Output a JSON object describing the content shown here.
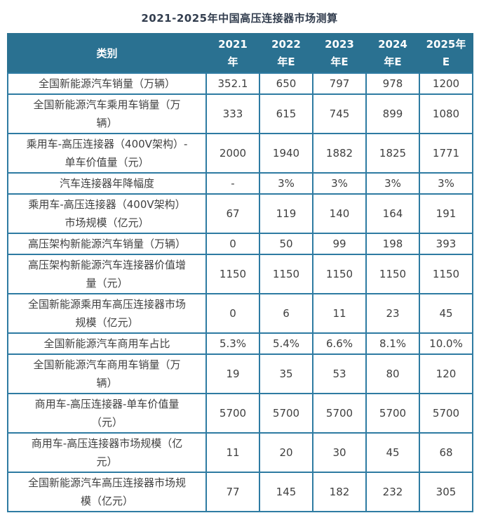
{
  "title": "2021-2025年中国高压连接器市场测算",
  "colors": {
    "header_bg": "#2a7191",
    "header_text": "#ffffff",
    "grid_border": "#2e7ba2",
    "cell_text": "#404040",
    "title_text": "#333e4f"
  },
  "table": {
    "header": {
      "category_label": "类别",
      "year_columns": [
        {
          "label": "2021年",
          "line1": "2021",
          "line2": "年"
        },
        {
          "label": "2022年E",
          "line1": "2022",
          "line2": "年E"
        },
        {
          "label": "2023年E",
          "line1": "2023",
          "line2": "年E"
        },
        {
          "label": "2024年E",
          "line1": "2024",
          "line2": "年E"
        },
        {
          "label": "2025年E",
          "line1": "2025年",
          "line2": "E"
        }
      ]
    },
    "rows": [
      {
        "label": "全国新能源汽车销量（万辆）",
        "values": [
          "352.1",
          "650",
          "797",
          "978",
          "1200"
        ]
      },
      {
        "label": "全国新能源汽车乘用车销量（万\n辆）",
        "values": [
          "333",
          "615",
          "745",
          "899",
          "1080"
        ]
      },
      {
        "label": "乘用车-高压连接器（400V架构）-\n单车价值量（元）",
        "values": [
          "2000",
          "1940",
          "1882",
          "1825",
          "1771"
        ]
      },
      {
        "label": "汽车连接器年降幅度",
        "values": [
          "-",
          "3%",
          "3%",
          "3%",
          "3%"
        ]
      },
      {
        "label": "乘用车-高压连接器（400V架构）\n市场规模（亿元）",
        "values": [
          "67",
          "119",
          "140",
          "164",
          "191"
        ]
      },
      {
        "label": "高压架构新能源汽车销量（万辆）",
        "values": [
          "0",
          "50",
          "99",
          "198",
          "393"
        ]
      },
      {
        "label": "高压架构新能源汽车连接器价值增\n量（元）",
        "values": [
          "1150",
          "1150",
          "1150",
          "1150",
          "1150"
        ]
      },
      {
        "label": "全国新能源乘用车高压连接器市场\n规模（亿元）",
        "values": [
          "0",
          "6",
          "11",
          "23",
          "45"
        ]
      },
      {
        "label": "全国新能源汽车商用车占比",
        "values": [
          "5.3%",
          "5.4%",
          "6.6%",
          "8.1%",
          "10.0%"
        ]
      },
      {
        "label": "全国新能源汽车商用车销量（万\n辆）",
        "values": [
          "19",
          "35",
          "53",
          "80",
          "120"
        ]
      },
      {
        "label": "商用车-高压连接器-单车价值量\n（元）",
        "values": [
          "5700",
          "5700",
          "5700",
          "5700",
          "5700"
        ]
      },
      {
        "label": "商用车-高压连接器市场规模（亿\n元）",
        "values": [
          "11",
          "20",
          "30",
          "45",
          "68"
        ]
      },
      {
        "label": "全国新能源汽车高压连接器市场规\n模（亿元）",
        "values": [
          "77",
          "145",
          "182",
          "232",
          "305"
        ]
      }
    ]
  },
  "chart_data": {
    "type": "table",
    "title": "2021-2025年中国高压连接器市场测算",
    "columns": [
      "类别",
      "2021年",
      "2022年E",
      "2023年E",
      "2024年E",
      "2025年E"
    ],
    "rows": [
      {
        "category": "全国新能源汽车销量（万辆）",
        "values": [
          352.1,
          650,
          797,
          978,
          1200
        ]
      },
      {
        "category": "全国新能源汽车乘用车销量（万辆）",
        "values": [
          333,
          615,
          745,
          899,
          1080
        ]
      },
      {
        "category": "乘用车-高压连接器（400V架构）-单车价值量（元）",
        "values": [
          2000,
          1940,
          1882,
          1825,
          1771
        ]
      },
      {
        "category": "汽车连接器年降幅度",
        "values": [
          "-",
          "3%",
          "3%",
          "3%",
          "3%"
        ]
      },
      {
        "category": "乘用车-高压连接器（400V架构）市场规模（亿元）",
        "values": [
          67,
          119,
          140,
          164,
          191
        ]
      },
      {
        "category": "高压架构新能源汽车销量（万辆）",
        "values": [
          0,
          50,
          99,
          198,
          393
        ]
      },
      {
        "category": "高压架构新能源汽车连接器价值增量（元）",
        "values": [
          1150,
          1150,
          1150,
          1150,
          1150
        ]
      },
      {
        "category": "全国新能源乘用车高压连接器市场规模（亿元）",
        "values": [
          0,
          6,
          11,
          23,
          45
        ]
      },
      {
        "category": "全国新能源汽车商用车占比",
        "values": [
          "5.3%",
          "5.4%",
          "6.6%",
          "8.1%",
          "10.0%"
        ]
      },
      {
        "category": "全国新能源汽车商用车销量（万辆）",
        "values": [
          19,
          35,
          53,
          80,
          120
        ]
      },
      {
        "category": "商用车-高压连接器-单车价值量（元）",
        "values": [
          5700,
          5700,
          5700,
          5700,
          5700
        ]
      },
      {
        "category": "商用车-高压连接器市场规模（亿元）",
        "values": [
          11,
          20,
          30,
          45,
          68
        ]
      },
      {
        "category": "全国新能源汽车高压连接器市场规模（亿元）",
        "values": [
          77,
          145,
          182,
          232,
          305
        ]
      }
    ]
  }
}
